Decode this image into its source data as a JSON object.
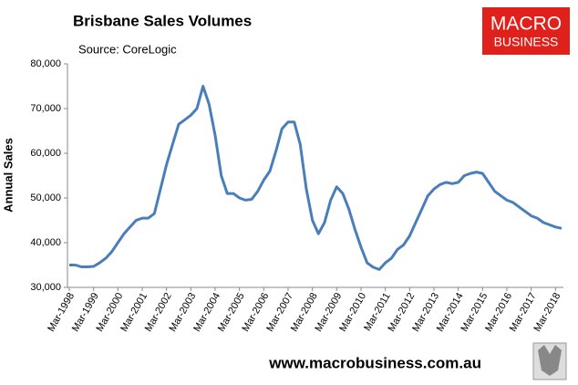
{
  "chart_data": {
    "type": "line",
    "title": "Brisbane Sales Volumes",
    "subtitle": "Source: CoreLogic",
    "ylabel": "Annual Sales",
    "logo": [
      "MACRO",
      "BUSINESS"
    ],
    "footer": "www.macrobusiness.com.au",
    "categories": [
      "Mar-1998",
      null,
      null,
      null,
      "Mar-1999",
      null,
      null,
      null,
      "Mar-2000",
      null,
      null,
      null,
      "Mar-2001",
      null,
      null,
      null,
      "Mar-2002",
      null,
      null,
      null,
      "Mar-2003",
      null,
      null,
      null,
      "Mar-2004",
      null,
      null,
      null,
      "Mar-2005",
      null,
      null,
      null,
      "Mar-2006",
      null,
      null,
      null,
      "Mar-2007",
      null,
      null,
      null,
      "Mar-2008",
      null,
      null,
      null,
      "Mar-2009",
      null,
      null,
      null,
      "Mar-2010",
      null,
      null,
      null,
      "Mar-2011",
      null,
      null,
      null,
      "Mar-2012",
      null,
      null,
      null,
      "Mar-2013",
      null,
      null,
      null,
      "Mar-2014",
      null,
      null,
      null,
      "Mar-2015",
      null,
      null,
      null,
      "Mar-2016",
      null,
      null,
      null,
      "Mar-2017",
      null,
      null,
      null,
      "Mar-2018",
      null
    ],
    "values": [
      35000,
      35000,
      34600,
      34600,
      34700,
      35500,
      36500,
      38000,
      40000,
      42000,
      43500,
      45000,
      45500,
      45500,
      46500,
      52000,
      57500,
      62000,
      66500,
      67500,
      68500,
      70000,
      75000,
      71000,
      64000,
      55000,
      51000,
      51000,
      50000,
      49500,
      49700,
      51500,
      54000,
      56000,
      60500,
      65500,
      67000,
      67000,
      62000,
      52000,
      45000,
      42000,
      44500,
      49500,
      52500,
      51000,
      47500,
      43000,
      39000,
      35500,
      34500,
      34000,
      35500,
      36500,
      38500,
      39500,
      41500,
      44500,
      47500,
      50500,
      52000,
      53000,
      53500,
      53200,
      53500,
      55000,
      55500,
      55800,
      55500,
      53500,
      51500,
      50500,
      49500,
      49000,
      48000,
      47000,
      46000,
      45500,
      44500,
      44000,
      43500,
      43200
    ],
    "color": "#4a7ebb",
    "ylim": [
      30000,
      80000
    ],
    "yticks": [
      {
        "value": 30000,
        "label": "30,000"
      },
      {
        "value": 40000,
        "label": "40,000"
      },
      {
        "value": 50000,
        "label": "50,000"
      },
      {
        "value": 60000,
        "label": "60,000"
      },
      {
        "value": 70000,
        "label": "70,000"
      },
      {
        "value": 80000,
        "label": "80,000"
      }
    ],
    "grid": false
  }
}
